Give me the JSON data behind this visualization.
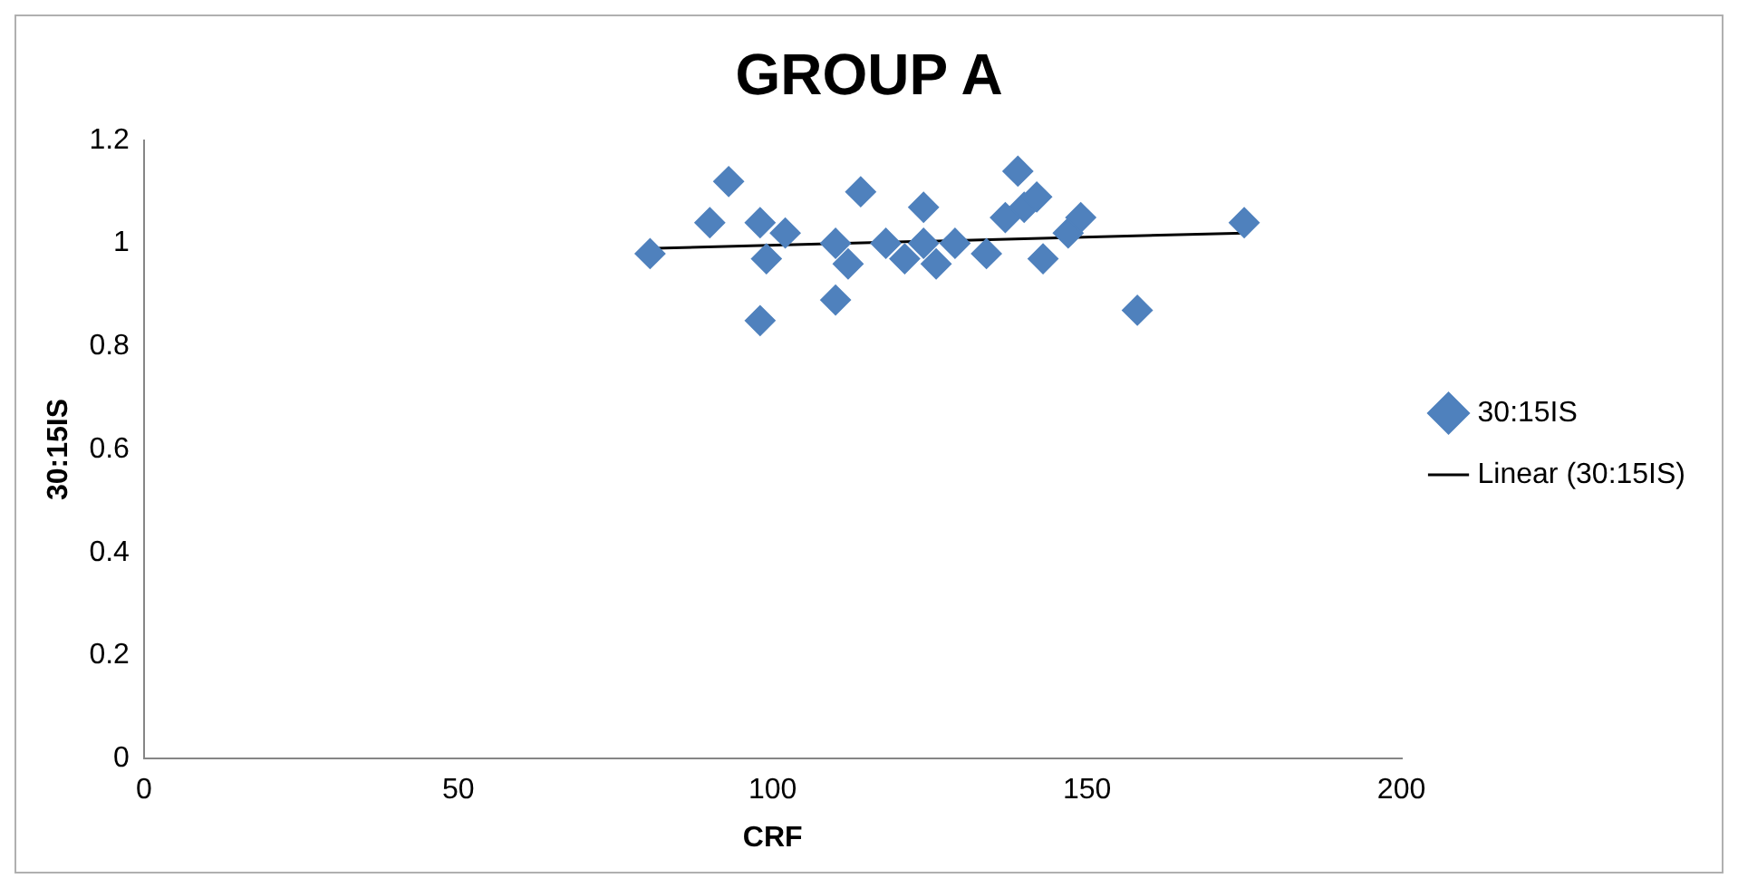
{
  "chart_data": {
    "type": "scatter",
    "title": "GROUP A",
    "xlabel": "CRF",
    "ylabel": "30:15IS",
    "xlim": [
      0,
      200
    ],
    "xticks": [
      0,
      50,
      100,
      150,
      200
    ],
    "ylim": [
      0,
      1.2
    ],
    "yticks": [
      0,
      0.2,
      0.4,
      0.6,
      0.8,
      1,
      1.2
    ],
    "grid": false,
    "legend": "right",
    "marker": "diamond",
    "series": [
      {
        "name": "30:15IS",
        "color": "#4f81bd",
        "x": [
          80.5,
          90,
          93,
          98,
          99,
          98,
          102,
          110,
          110,
          112,
          114,
          118,
          120,
          121,
          124,
          124,
          126,
          129,
          134,
          137,
          139,
          140,
          142,
          143,
          147,
          149,
          158,
          175
        ],
        "values": [
          0.98,
          1.04,
          1.12,
          1.04,
          0.97,
          0.85,
          1.02,
          1.0,
          0.89,
          0.96,
          1.1,
          1.0,
          null,
          0.97,
          1.07,
          1.0,
          0.96,
          1.0,
          0.98,
          1.05,
          1.14,
          1.07,
          1.09,
          0.97,
          1.02,
          1.05,
          0.87,
          1.04
        ]
      },
      {
        "name": "Linear (30:15IS)",
        "type": "line",
        "color": "#000000",
        "marker": "none",
        "x": [
          80,
          175
        ],
        "values": [
          0.99,
          1.02
        ]
      }
    ]
  }
}
